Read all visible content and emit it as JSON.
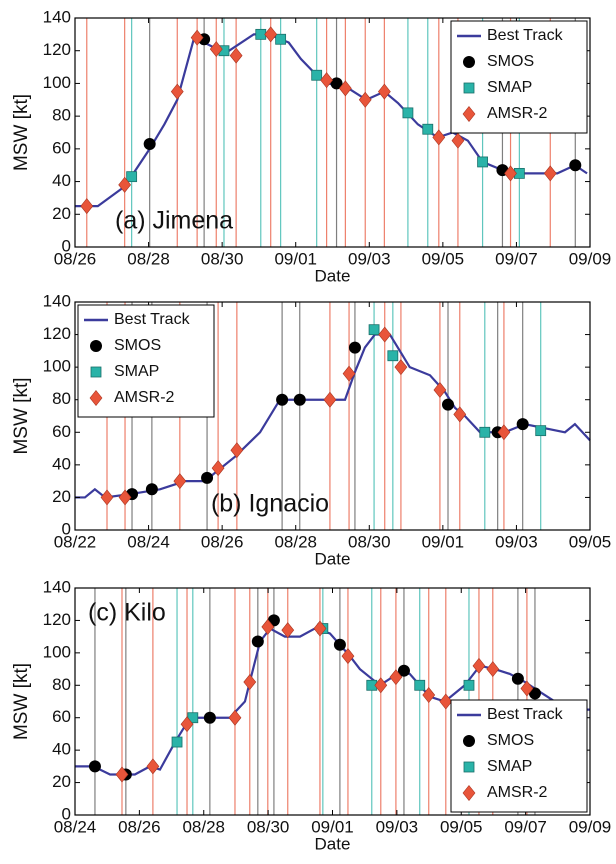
{
  "chart_data": [
    {
      "type": "line",
      "annotation": "(a) Jimena",
      "xlabel": "Date",
      "ylabel": "MSW [kt]",
      "legend": "upper right",
      "xlim": [
        26,
        40
      ],
      "ylim": [
        0,
        140
      ],
      "yticks": [
        0,
        20,
        40,
        60,
        80,
        100,
        120,
        140
      ],
      "xticks": [
        {
          "value": 26,
          "label": "08/26"
        },
        {
          "value": 28,
          "label": "08/28"
        },
        {
          "value": 30,
          "label": "08/30"
        },
        {
          "value": 32,
          "label": "09/01"
        },
        {
          "value": 34,
          "label": "09/03"
        },
        {
          "value": 36,
          "label": "09/05"
        },
        {
          "value": 38,
          "label": "09/07"
        },
        {
          "value": 40,
          "label": "09/09"
        }
      ],
      "series": [
        {
          "name": "Best Track",
          "color": "#3b3b9c",
          "marker": "line",
          "x": [
            26,
            26.62,
            27.35,
            28.03,
            28.43,
            28.78,
            29.24,
            29.78,
            30.19,
            30.86,
            31.27,
            31.81,
            32.14,
            32.57,
            32.89,
            33.43,
            33.92,
            34.41,
            34.78,
            35.32,
            35.86,
            36.27,
            36.68,
            37.08,
            37.62,
            37.89,
            39.11,
            39.59,
            39.92
          ],
          "values": [
            25,
            25,
            37,
            60,
            75,
            90,
            128,
            122,
            120,
            130,
            130,
            125,
            115,
            105,
            100,
            97,
            90,
            95,
            88,
            75,
            67,
            70,
            65,
            52,
            47,
            45,
            45,
            50,
            45
          ]
        },
        {
          "name": "SMOS",
          "color": "#000000",
          "marker": "circle",
          "x": [
            28.03,
            29.51,
            33.11,
            37.62,
            39.6
          ],
          "values": [
            63,
            127,
            100,
            47,
            50
          ]
        },
        {
          "name": "SMAP",
          "color": "#2ab3a8",
          "marker": "square",
          "x": [
            27.54,
            30.05,
            31.05,
            31.59,
            32.57,
            35.05,
            35.59,
            37.08,
            38.08
          ],
          "values": [
            43,
            120,
            130,
            127,
            105,
            82,
            72,
            52,
            45
          ]
        },
        {
          "name": "AMSR-2",
          "color": "#e8553a",
          "marker": "diamond",
          "x": [
            26.32,
            27.35,
            28.78,
            29.32,
            29.84,
            30.38,
            31.32,
            32.84,
            33.35,
            33.89,
            34.41,
            35.89,
            36.41,
            37.84,
            38.92
          ],
          "values": [
            25,
            38,
            95,
            128,
            121,
            117,
            130,
            102,
            97,
            90,
            95,
            67,
            65,
            45,
            45
          ]
        }
      ]
    },
    {
      "type": "line",
      "annotation": "(b) Ignacio",
      "xlabel": "Date",
      "ylabel": "MSW [kt]",
      "legend": "upper left",
      "xlim": [
        22,
        36
      ],
      "ylim": [
        0,
        140
      ],
      "yticks": [
        0,
        20,
        40,
        60,
        80,
        100,
        120,
        140
      ],
      "xticks": [
        {
          "value": 22,
          "label": "08/22"
        },
        {
          "value": 24,
          "label": "08/24"
        },
        {
          "value": 26,
          "label": "08/26"
        },
        {
          "value": 28,
          "label": "08/28"
        },
        {
          "value": 30,
          "label": "08/30"
        },
        {
          "value": 32,
          "label": "09/01"
        },
        {
          "value": 34,
          "label": "09/03"
        },
        {
          "value": 36,
          "label": "09/05"
        }
      ],
      "series": [
        {
          "name": "Best Track",
          "color": "#3b3b9c",
          "marker": "line",
          "x": [
            22,
            22.27,
            22.54,
            22.82,
            23.49,
            24.31,
            24.99,
            25.53,
            25.8,
            26.35,
            27.03,
            27.57,
            29.34,
            29.61,
            29.88,
            30.15,
            30.56,
            30.83,
            31.1,
            31.65,
            32.05,
            32.33,
            32.6,
            33.01,
            33.68,
            34.23,
            35.32,
            35.59,
            36
          ],
          "values": [
            20,
            20,
            25,
            20,
            22,
            25,
            30,
            30,
            35,
            45,
            60,
            80,
            80,
            97,
            112,
            120,
            120,
            110,
            100,
            95,
            85,
            75,
            70,
            60,
            60,
            65,
            60,
            65,
            55
          ]
        },
        {
          "name": "SMOS",
          "color": "#000000",
          "marker": "circle",
          "x": [
            23.55,
            24.09,
            25.59,
            27.63,
            28.11,
            29.61,
            32.14,
            33.49,
            34.17
          ],
          "values": [
            22,
            25,
            32,
            80,
            80,
            112,
            77,
            60,
            65
          ]
        },
        {
          "name": "SMAP",
          "color": "#2ab3a8",
          "marker": "square",
          "x": [
            30.13,
            30.64,
            33.14,
            34.66
          ],
          "values": [
            123,
            107,
            60,
            61
          ]
        },
        {
          "name": "AMSR-2",
          "color": "#e8553a",
          "marker": "diamond",
          "x": [
            22.87,
            23.36,
            24.85,
            25.89,
            26.4,
            28.93,
            29.45,
            30.42,
            30.86,
            31.92,
            32.46,
            33.66
          ],
          "values": [
            20,
            20,
            30,
            38,
            49,
            80,
            96,
            120,
            100,
            86,
            71,
            60
          ]
        }
      ]
    },
    {
      "type": "line",
      "annotation": "(c) Kilo",
      "xlabel": "Date",
      "ylabel": "MSW [kt]",
      "legend": "lower right",
      "xlim": [
        24,
        40
      ],
      "ylim": [
        0,
        140
      ],
      "yticks": [
        0,
        20,
        40,
        60,
        80,
        100,
        120,
        140
      ],
      "xticks": [
        {
          "value": 24,
          "label": "08/24"
        },
        {
          "value": 26,
          "label": "08/26"
        },
        {
          "value": 28,
          "label": "08/28"
        },
        {
          "value": 30,
          "label": "08/30"
        },
        {
          "value": 32,
          "label": "09/01"
        },
        {
          "value": 34,
          "label": "09/03"
        },
        {
          "value": 36,
          "label": "09/05"
        },
        {
          "value": 38,
          "label": "09/07"
        },
        {
          "value": 40,
          "label": "09/09"
        }
      ],
      "series": [
        {
          "name": "Best Track",
          "color": "#3b3b9c",
          "marker": "line",
          "x": [
            24,
            24.47,
            24.78,
            25.09,
            25.86,
            26.33,
            26.64,
            27.11,
            27.42,
            27.73,
            28.81,
            29.28,
            29.43,
            29.75,
            30.06,
            30.52,
            30.99,
            31.45,
            31.92,
            32.23,
            32.54,
            32.85,
            33.16,
            33.47,
            34.09,
            34.4,
            34.71,
            35.02,
            35.49,
            35.8,
            36.11,
            36.58,
            37.04,
            37.51,
            37.98,
            38.44,
            38.91,
            39.37,
            40
          ],
          "values": [
            30,
            30,
            28,
            25,
            25,
            30,
            28,
            45,
            55,
            60,
            60,
            70,
            82,
            107,
            115,
            110,
            110,
            115,
            112,
            105,
            98,
            90,
            85,
            80,
            88,
            87,
            80,
            73,
            70,
            75,
            80,
            92,
            90,
            87,
            82,
            76,
            70,
            65,
            65
          ]
        },
        {
          "name": "SMOS",
          "color": "#000000",
          "marker": "circle",
          "x": [
            24.62,
            25.58,
            28.19,
            29.68,
            30.18,
            32.23,
            34.22,
            37.76,
            38.29
          ],
          "values": [
            30,
            25,
            60,
            107,
            120,
            105,
            89,
            84,
            75
          ]
        },
        {
          "name": "SMAP",
          "color": "#2ab3a8",
          "marker": "square",
          "x": [
            27.17,
            27.66,
            31.7,
            33.22,
            34.71,
            36.24
          ],
          "values": [
            45,
            60,
            115,
            80,
            80,
            80
          ]
        },
        {
          "name": "AMSR-2",
          "color": "#e8553a",
          "marker": "diamond",
          "x": [
            25.46,
            26.42,
            27.48,
            28.97,
            29.43,
            29.99,
            30.61,
            31.61,
            32.48,
            33.5,
            33.97,
            34.99,
            35.52,
            36.55,
            36.98,
            38.04
          ],
          "values": [
            25,
            30,
            56,
            60,
            82,
            116,
            114,
            115,
            98,
            80,
            85,
            74,
            70,
            92,
            90,
            78
          ]
        }
      ]
    }
  ]
}
